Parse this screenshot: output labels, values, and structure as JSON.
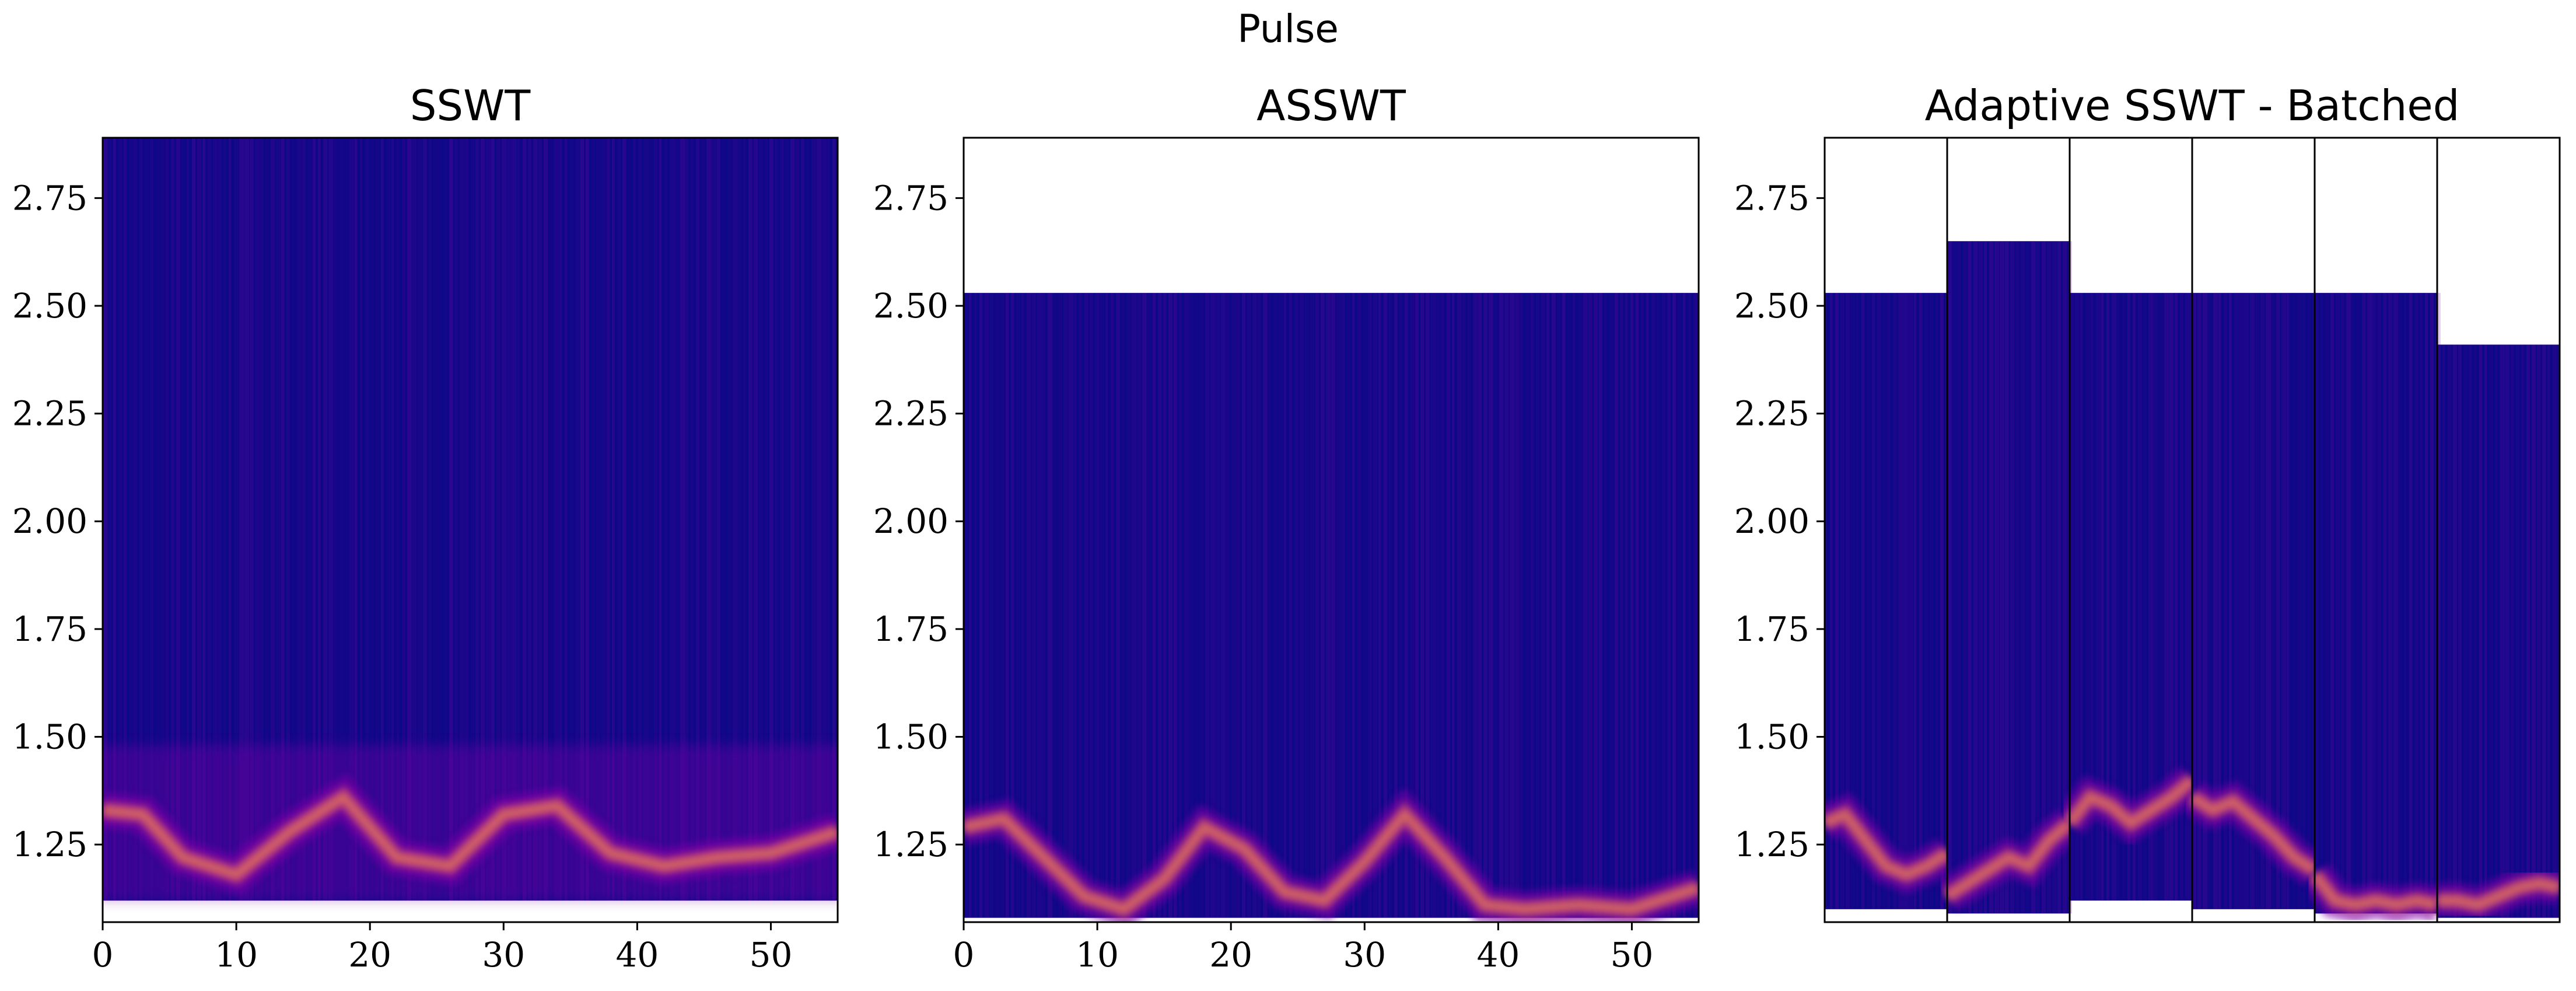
{
  "suptitle": "Pulse",
  "colors": {
    "background": "#0d0887",
    "mid": "#7e03a8",
    "hot": "#f89540",
    "peak": "#f0f921",
    "frame": "#000000"
  },
  "chart_data": [
    {
      "type": "heatmap",
      "title": "SSWT",
      "colormap": "plasma",
      "xlabel": "",
      "ylabel": "",
      "xlim": [
        0,
        55
      ],
      "ylim": [
        1.07,
        2.89
      ],
      "xticks": [
        "0",
        "10",
        "20",
        "30",
        "40",
        "50"
      ],
      "yticks": [
        "1.25",
        "1.50",
        "1.75",
        "2.00",
        "2.25",
        "2.50",
        "2.75"
      ],
      "data_extent": {
        "y": [
          1.12,
          2.89
        ]
      },
      "ridges": [
        {
          "x": [
            0,
            3,
            6,
            10,
            14,
            18,
            22,
            26,
            30,
            34,
            38,
            42,
            46,
            50,
            55
          ],
          "y": [
            1.33,
            1.32,
            1.22,
            1.18,
            1.28,
            1.36,
            1.22,
            1.2,
            1.32,
            1.34,
            1.23,
            1.2,
            1.22,
            1.23,
            1.28
          ]
        }
      ]
    },
    {
      "type": "heatmap",
      "title": "ASSWT",
      "colormap": "plasma",
      "xlabel": "",
      "ylabel": "",
      "xlim": [
        0,
        55
      ],
      "ylim": [
        1.07,
        2.89
      ],
      "xticks": [
        "0",
        "10",
        "20",
        "30",
        "40",
        "50"
      ],
      "yticks": [
        "1.25",
        "1.50",
        "1.75",
        "2.00",
        "2.25",
        "2.50",
        "2.75"
      ],
      "data_extent": {
        "y": [
          1.08,
          2.53
        ]
      },
      "ridges": [
        {
          "x": [
            0,
            3,
            6,
            9,
            12,
            15,
            18,
            21,
            24,
            27,
            30,
            33,
            36,
            39,
            42,
            46,
            50,
            55
          ],
          "y": [
            1.29,
            1.31,
            1.22,
            1.13,
            1.1,
            1.17,
            1.29,
            1.24,
            1.14,
            1.12,
            1.21,
            1.32,
            1.22,
            1.11,
            1.1,
            1.11,
            1.1,
            1.15
          ]
        }
      ]
    },
    {
      "type": "heatmap",
      "title": "Adaptive SSWT - Batched",
      "colormap": "plasma",
      "xlabel": "",
      "ylabel": "",
      "xlim": [
        0,
        6
      ],
      "ylim": [
        1.07,
        2.89
      ],
      "xticks": [],
      "yticks": [
        "1.25",
        "1.50",
        "1.75",
        "2.00",
        "2.25",
        "2.50",
        "2.75"
      ],
      "batches": [
        {
          "y_range": [
            1.1,
            2.53
          ],
          "ridge": [
            1.3,
            1.32,
            1.26,
            1.2,
            1.18,
            1.2,
            1.23
          ]
        },
        {
          "y_range": [
            1.09,
            2.65
          ],
          "ridge": [
            1.13,
            1.16,
            1.19,
            1.22,
            1.2,
            1.26,
            1.3
          ]
        },
        {
          "y_range": [
            1.12,
            2.53
          ],
          "ridge": [
            1.3,
            1.36,
            1.34,
            1.3,
            1.33,
            1.36,
            1.4
          ]
        },
        {
          "y_range": [
            1.1,
            2.53
          ],
          "ridge": [
            1.36,
            1.33,
            1.35,
            1.31,
            1.27,
            1.22,
            1.19
          ]
        },
        {
          "y_range": [
            1.09,
            2.53
          ],
          "ridge": [
            1.18,
            1.12,
            1.11,
            1.12,
            1.11,
            1.12,
            1.11
          ]
        },
        {
          "y_range": [
            1.08,
            2.41
          ],
          "ridge": [
            1.12,
            1.12,
            1.11,
            1.13,
            1.15,
            1.16,
            1.15
          ]
        }
      ]
    }
  ]
}
